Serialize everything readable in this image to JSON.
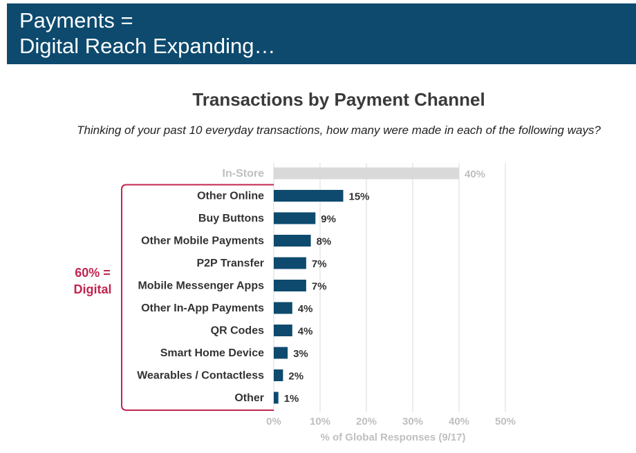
{
  "banner": {
    "line1": "Payments =",
    "line2": "Digital Reach Expanding…"
  },
  "colors": {
    "banner_bg": "#0d4a6e",
    "bar": "#0d4a6e",
    "bar_muted": "#d9d9d9",
    "bracket": "#c0254f",
    "muted_text": "#bfbfbf"
  },
  "chart_data": {
    "type": "bar",
    "orientation": "horizontal",
    "title": "Transactions by Payment Channel",
    "subtitle": "Thinking of your past 10 everyday transactions, how many were made in each of the following ways?",
    "categories": [
      "In-Store",
      "Other Online",
      "Buy Buttons",
      "Other Mobile Payments",
      "P2P Transfer",
      "Mobile Messenger Apps",
      "Other In-App Payments",
      "QR Codes",
      "Smart Home Device",
      "Wearables / Contactless",
      "Other"
    ],
    "values": [
      40,
      15,
      9,
      8,
      7,
      7,
      4,
      4,
      3,
      2,
      1
    ],
    "data_labels": [
      "40%",
      "15%",
      "9%",
      "8%",
      "7%",
      "7%",
      "4%",
      "4%",
      "3%",
      "2%",
      "1%"
    ],
    "muted_categories": [
      "In-Store"
    ],
    "xlabel": "% of Global Responses (9/17)",
    "xlim": [
      0,
      50
    ],
    "xticks": [
      0,
      10,
      20,
      30,
      40,
      50
    ],
    "xtick_labels": [
      "0%",
      "10%",
      "20%",
      "30%",
      "40%",
      "50%"
    ],
    "grid": true,
    "annotation": {
      "line1": "60% =",
      "line2": "Digital"
    }
  }
}
